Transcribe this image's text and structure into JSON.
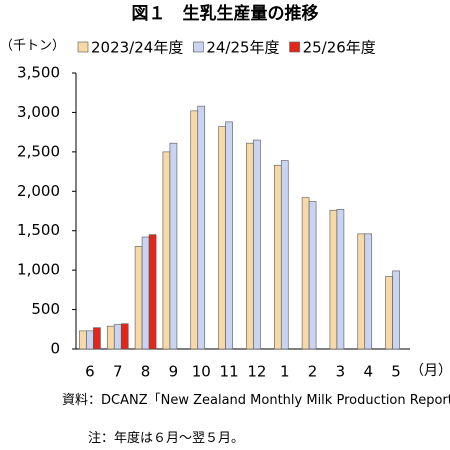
{
  "chart_data": {
    "type": "bar",
    "title": "図１　生乳生産量の推移",
    "y_label": "（千トン）",
    "x_label": "（月）",
    "categories": [
      "6",
      "7",
      "8",
      "9",
      "10",
      "11",
      "12",
      "1",
      "2",
      "3",
      "4",
      "5"
    ],
    "series": [
      {
        "name": "2023/24年度",
        "color": "#f6d9a6",
        "values": [
          230,
          290,
          1300,
          2500,
          3020,
          2820,
          2610,
          2330,
          1920,
          1760,
          1460,
          920
        ]
      },
      {
        "name": "24/25年度",
        "color": "#c9d3f2",
        "values": [
          230,
          310,
          1420,
          2610,
          3080,
          2880,
          2650,
          2390,
          1870,
          1770,
          1460,
          990
        ]
      },
      {
        "name": "25/26年度",
        "color": "#e2261a",
        "values": [
          270,
          320,
          1450,
          null,
          null,
          null,
          null,
          null,
          null,
          null,
          null,
          null
        ]
      }
    ],
    "ylim": [
      0,
      3500
    ],
    "yticks": [
      0,
      500,
      {
        "value": 1000,
        "label": "1,000"
      },
      {
        "value": 1500,
        "label": "1,500"
      },
      {
        "value": 2000,
        "label": "2,000"
      },
      {
        "value": 2500,
        "label": "2,500"
      },
      {
        "value": 3000,
        "label": "3,000"
      },
      {
        "value": 3500,
        "label": "3,500"
      }
    ],
    "notes": [
      "資料：DCANZ「New Zealand Monthly Milk Production Report」",
      "注：年度は６月～翌５月。"
    ]
  }
}
